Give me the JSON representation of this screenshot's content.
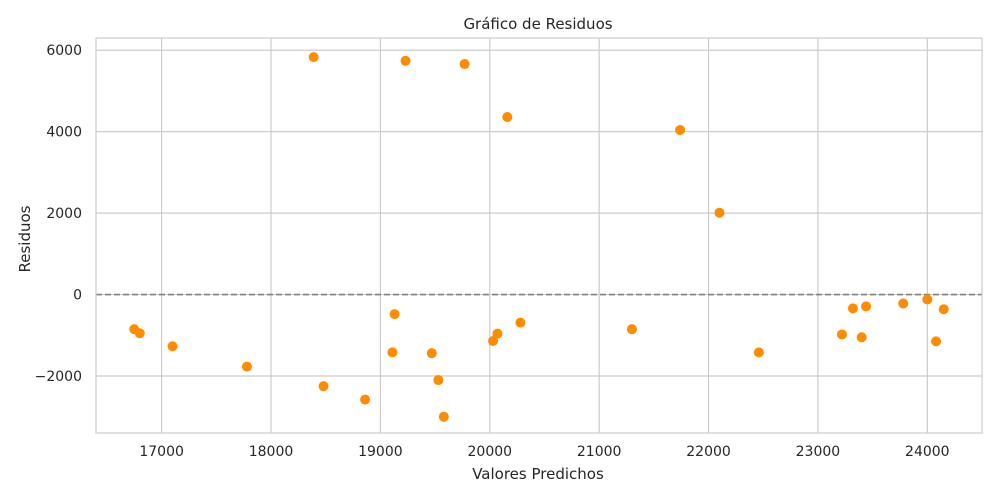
{
  "chart_data": {
    "type": "scatter",
    "title": "Gráfico de Residuos",
    "xlabel": "Valores Predichos",
    "ylabel": "Residuos",
    "xlim": [
      16400,
      24500
    ],
    "ylim": [
      -3400,
      6300
    ],
    "x_ticks": [
      17000,
      18000,
      19000,
      20000,
      21000,
      22000,
      23000,
      24000
    ],
    "y_ticks": [
      -2000,
      0,
      2000,
      4000,
      6000
    ],
    "grid": true,
    "reference_line": {
      "y": 0,
      "style": "dashed",
      "color": "#808080"
    },
    "point_color": "#ff8c00",
    "points": [
      {
        "x": 16750,
        "y": -850
      },
      {
        "x": 16800,
        "y": -950
      },
      {
        "x": 17100,
        "y": -1270
      },
      {
        "x": 17780,
        "y": -1770
      },
      {
        "x": 18390,
        "y": 5830
      },
      {
        "x": 18480,
        "y": -2250
      },
      {
        "x": 18860,
        "y": -2580
      },
      {
        "x": 19110,
        "y": -1420
      },
      {
        "x": 19130,
        "y": -480
      },
      {
        "x": 19230,
        "y": 5740
      },
      {
        "x": 19470,
        "y": -1440
      },
      {
        "x": 19530,
        "y": -2100
      },
      {
        "x": 19580,
        "y": -3000
      },
      {
        "x": 19770,
        "y": 5660
      },
      {
        "x": 20030,
        "y": -1140
      },
      {
        "x": 20070,
        "y": -960
      },
      {
        "x": 20160,
        "y": 4360
      },
      {
        "x": 20280,
        "y": -690
      },
      {
        "x": 21300,
        "y": -850
      },
      {
        "x": 21740,
        "y": 4040
      },
      {
        "x": 22100,
        "y": 2010
      },
      {
        "x": 22460,
        "y": -1420
      },
      {
        "x": 23220,
        "y": -980
      },
      {
        "x": 23320,
        "y": -340
      },
      {
        "x": 23400,
        "y": -1050
      },
      {
        "x": 23440,
        "y": -290
      },
      {
        "x": 23780,
        "y": -220
      },
      {
        "x": 24000,
        "y": -120
      },
      {
        "x": 24080,
        "y": -1150
      },
      {
        "x": 24150,
        "y": -360
      }
    ]
  }
}
